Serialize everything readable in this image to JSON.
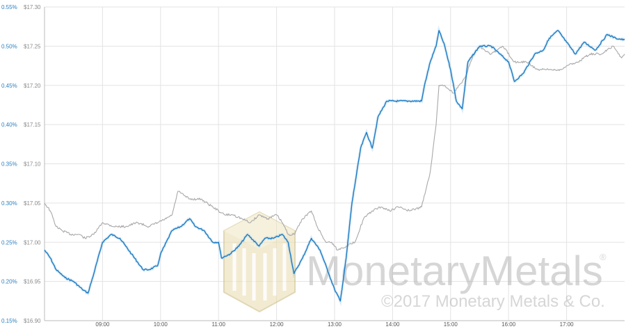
{
  "chart_data": {
    "type": "line",
    "title": "",
    "xlabel": "",
    "ylabel": "",
    "grid": true,
    "x_ticks": [
      "09:00",
      "10:00",
      "11:00",
      "12:00",
      "13:00",
      "14:00",
      "15:00",
      "16:00",
      "17:00"
    ],
    "x_range": [
      8.0,
      18.0
    ],
    "y_left_ticks": [
      "0.15%",
      "0.20%",
      "0.25%",
      "0.30%",
      "0.35%",
      "0.40%",
      "0.45%",
      "0.50%",
      "0.55%"
    ],
    "y_left_range": [
      0.15,
      0.55
    ],
    "y_right_ticks": [
      "$16.90",
      "$16.95",
      "$17.00",
      "$17.05",
      "$17.10",
      "$17.15",
      "$17.20",
      "$17.25",
      "$17.30"
    ],
    "y_right_range": [
      16.9,
      17.3
    ],
    "series": [
      {
        "name": "",
        "axis": "left",
        "color": "#1a7ac2",
        "x": [
          8.0,
          8.1,
          8.2,
          8.35,
          8.5,
          8.65,
          8.75,
          8.85,
          9.0,
          9.15,
          9.3,
          9.4,
          9.5,
          9.6,
          9.7,
          9.8,
          9.95,
          10.0,
          10.2,
          10.35,
          10.5,
          10.6,
          10.75,
          10.9,
          11.0,
          11.05,
          11.2,
          11.35,
          11.5,
          11.7,
          11.8,
          11.95,
          12.1,
          12.2,
          12.3,
          12.45,
          12.6,
          12.75,
          12.9,
          13.0,
          13.1,
          13.2,
          13.3,
          13.45,
          13.55,
          13.65,
          13.75,
          13.9,
          14.1,
          14.3,
          14.5,
          14.55,
          14.65,
          14.75,
          14.8,
          14.9,
          15.0,
          15.1,
          15.2,
          15.3,
          15.5,
          15.7,
          15.85,
          16.0,
          16.1,
          16.25,
          16.45,
          16.6,
          16.7,
          16.85,
          17.0,
          17.15,
          17.3,
          17.5,
          17.7,
          17.85,
          18.0
        ],
        "values": [
          0.24,
          0.23,
          0.215,
          0.205,
          0.2,
          0.19,
          0.185,
          0.21,
          0.25,
          0.26,
          0.255,
          0.245,
          0.235,
          0.225,
          0.215,
          0.215,
          0.22,
          0.235,
          0.265,
          0.27,
          0.28,
          0.27,
          0.265,
          0.25,
          0.25,
          0.23,
          0.235,
          0.245,
          0.26,
          0.245,
          0.255,
          0.255,
          0.26,
          0.25,
          0.21,
          0.23,
          0.255,
          0.24,
          0.21,
          0.19,
          0.175,
          0.23,
          0.3,
          0.37,
          0.39,
          0.37,
          0.41,
          0.43,
          0.43,
          0.43,
          0.43,
          0.45,
          0.48,
          0.5,
          0.52,
          0.5,
          0.47,
          0.43,
          0.42,
          0.48,
          0.5,
          0.5,
          0.49,
          0.48,
          0.455,
          0.465,
          0.49,
          0.495,
          0.51,
          0.52,
          0.505,
          0.49,
          0.505,
          0.495,
          0.515,
          0.51,
          0.508
        ]
      },
      {
        "name": "",
        "axis": "right",
        "color": "#a8a8a8",
        "x": [
          8.0,
          8.1,
          8.2,
          8.3,
          8.45,
          8.6,
          8.7,
          8.85,
          9.0,
          9.2,
          9.4,
          9.6,
          9.8,
          9.95,
          10.1,
          10.2,
          10.3,
          10.4,
          10.5,
          10.7,
          10.9,
          11.0,
          11.1,
          11.25,
          11.4,
          11.55,
          11.7,
          11.85,
          12.0,
          12.1,
          12.2,
          12.3,
          12.45,
          12.6,
          12.7,
          12.85,
          12.95,
          13.05,
          13.2,
          13.35,
          13.5,
          13.65,
          13.8,
          13.95,
          14.1,
          14.3,
          14.5,
          14.65,
          14.75,
          14.8,
          14.9,
          15.05,
          15.25,
          15.4,
          15.5,
          15.7,
          15.9,
          16.1,
          16.3,
          16.5,
          16.7,
          16.9,
          17.0,
          17.2,
          17.4,
          17.6,
          17.8,
          17.95,
          18.0
        ],
        "values": [
          17.05,
          17.04,
          17.02,
          17.015,
          17.01,
          17.01,
          17.005,
          17.01,
          17.025,
          17.02,
          17.02,
          17.025,
          17.02,
          17.025,
          17.03,
          17.035,
          17.065,
          17.06,
          17.055,
          17.055,
          17.045,
          17.04,
          17.035,
          17.035,
          17.03,
          17.025,
          17.035,
          17.03,
          17.035,
          17.025,
          17.01,
          17.01,
          17.03,
          17.04,
          17.02,
          17.0,
          17.0,
          16.99,
          16.995,
          17.0,
          17.03,
          17.04,
          17.045,
          17.04,
          17.045,
          17.04,
          17.045,
          17.09,
          17.15,
          17.2,
          17.2,
          17.19,
          17.21,
          17.24,
          17.25,
          17.24,
          17.25,
          17.23,
          17.23,
          17.22,
          17.22,
          17.22,
          17.225,
          17.23,
          17.24,
          17.24,
          17.25,
          17.235,
          17.24
        ]
      }
    ],
    "watermark": {
      "brand": "MonetaryMetals",
      "brand_part1": "Monetary",
      "brand_part2": "Metals",
      "registered": "®",
      "copyright": "©2017 Monetary Metals & Co."
    }
  }
}
